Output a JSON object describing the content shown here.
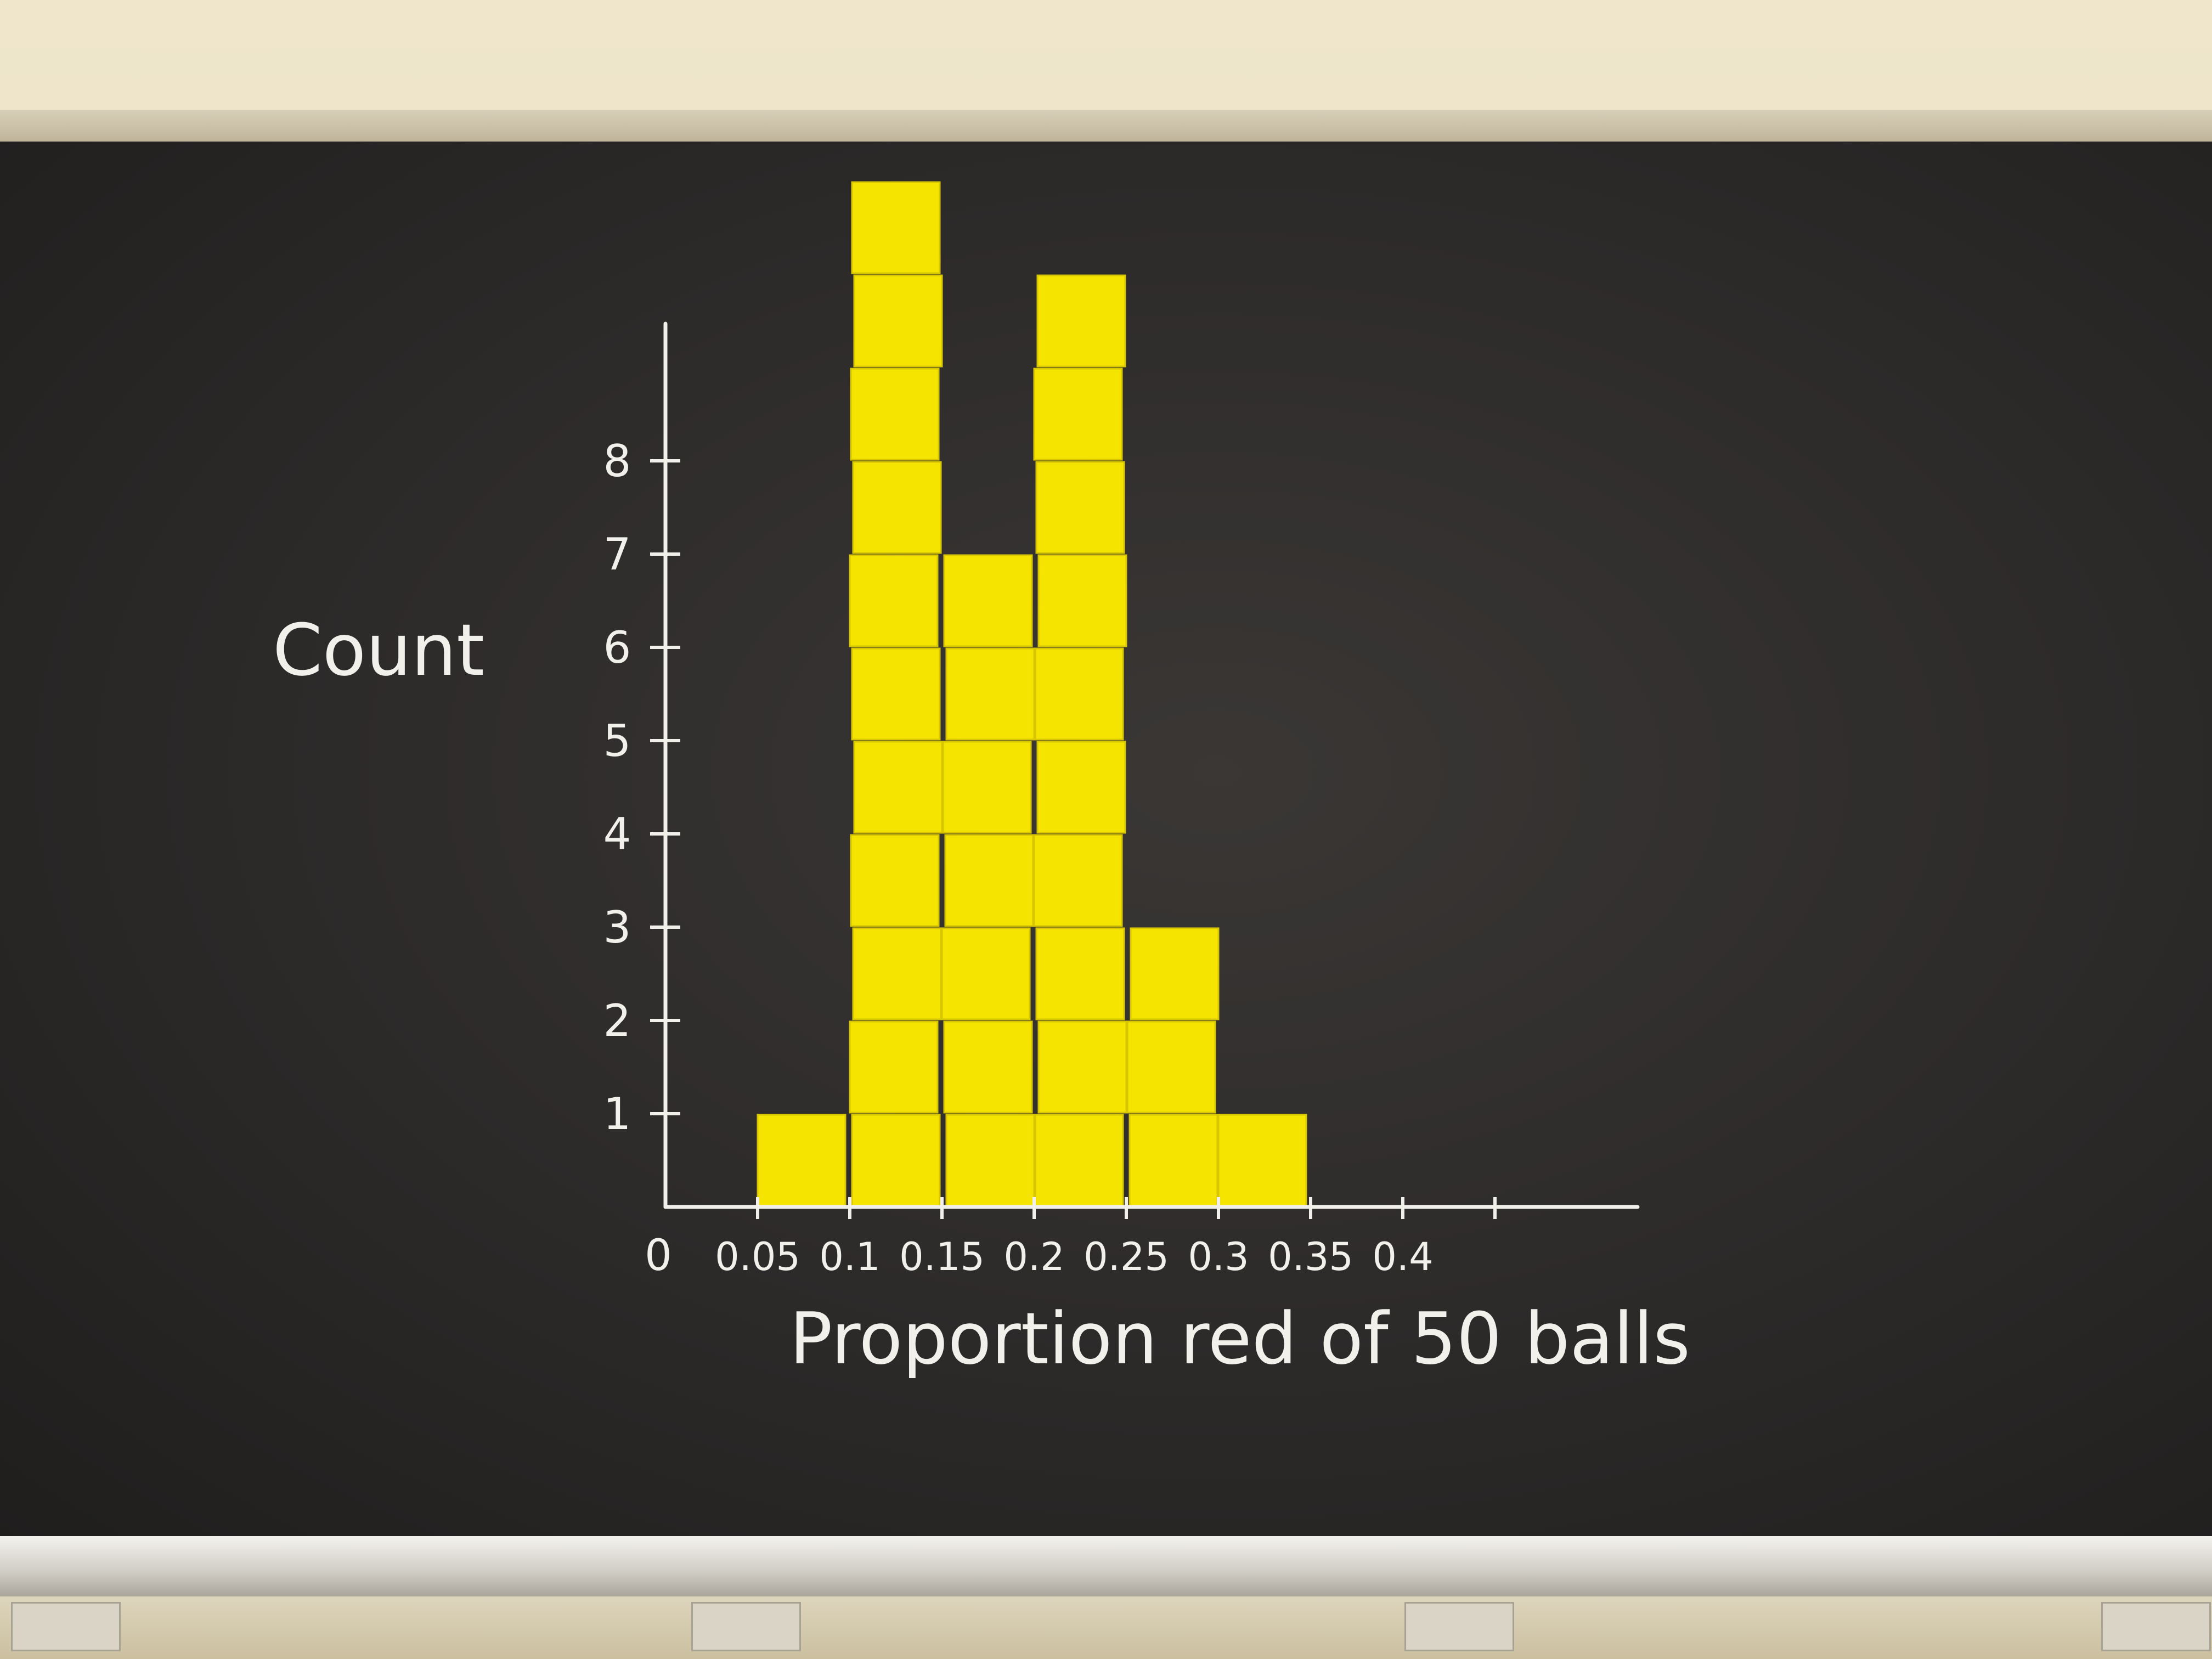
{
  "chart_data": {
    "type": "bar",
    "title": "",
    "xlabel": "Proportion red of 50 balls",
    "ylabel": "Count",
    "ylabel_text": "Count",
    "x_tick_labels": [
      "0",
      "0.05",
      "0.1",
      "0.15",
      "0.2",
      "0.25",
      "0.3",
      "0.35",
      "0.4"
    ],
    "x_tick_values": [
      0,
      0.05,
      0.1,
      0.15,
      0.2,
      0.25,
      0.3,
      0.35,
      0.4
    ],
    "y_tick_labels": [
      "1",
      "2",
      "3",
      "4",
      "5",
      "6",
      "7",
      "8"
    ],
    "y_tick_values": [
      1,
      2,
      3,
      4,
      5,
      6,
      7,
      8
    ],
    "bins": [
      {
        "start": 0.05,
        "end": 0.1,
        "count": 1
      },
      {
        "start": 0.1,
        "end": 0.15,
        "count": 11
      },
      {
        "start": 0.15,
        "end": 0.2,
        "count": 7
      },
      {
        "start": 0.2,
        "end": 0.25,
        "count": 10
      },
      {
        "start": 0.25,
        "end": 0.3,
        "count": 3
      },
      {
        "start": 0.3,
        "end": 0.35,
        "count": 1
      }
    ],
    "xlim": [
      0,
      0.45
    ],
    "ylim": [
      0,
      11
    ],
    "grid": false,
    "bar_color": "#f5e400",
    "chalk_color": "#f2f0ea",
    "board_color": "#2e2c2b"
  }
}
